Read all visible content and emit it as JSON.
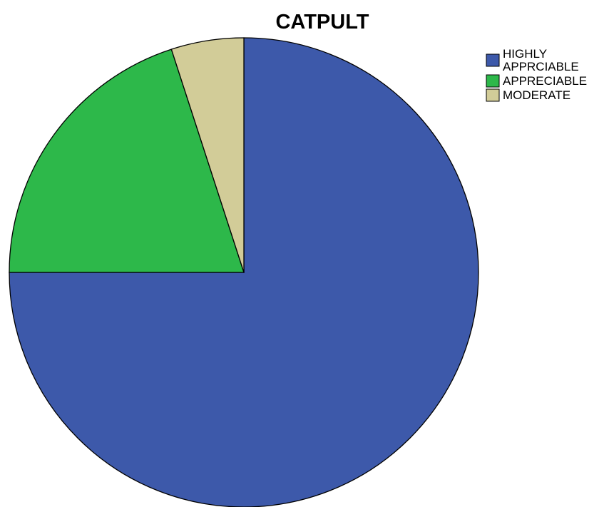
{
  "chart_data": {
    "type": "pie",
    "title": "CATPULT",
    "legend_position": "top-right",
    "slices": [
      {
        "label": "HIGHLY APPRCIABLE",
        "label_lines": [
          "HIGHLY",
          "APPRCIABLE"
        ],
        "value": 75.0,
        "color": "#3d59aa"
      },
      {
        "label": "APPRECIABLE",
        "label_lines": [
          "APPRECIABLE"
        ],
        "value": 20.0,
        "color": "#2db84a"
      },
      {
        "label": "MODERATE",
        "label_lines": [
          "MODERATE"
        ],
        "value": 5.0,
        "color": "#d2cc98"
      }
    ]
  }
}
